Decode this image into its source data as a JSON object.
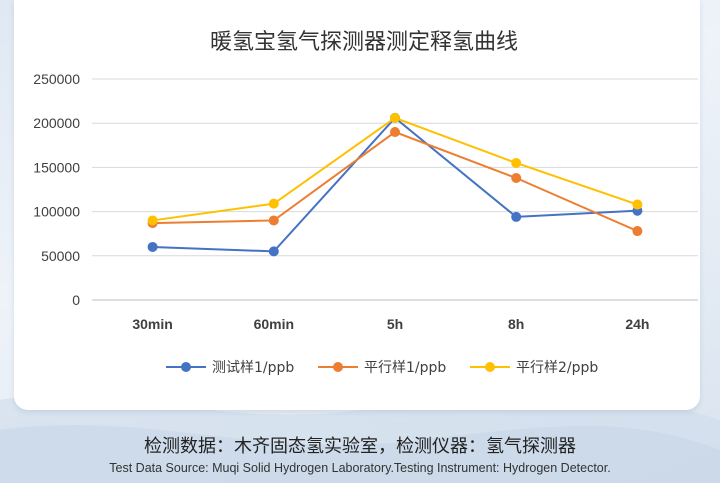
{
  "chart_data": {
    "type": "line",
    "title": "暖氢宝氢气探测器测定释氢曲线",
    "categories": [
      "30min",
      "60min",
      "5h",
      "8h",
      "24h"
    ],
    "ylim": [
      0,
      250000
    ],
    "yticks": [
      0,
      50000,
      100000,
      150000,
      200000,
      250000
    ],
    "grid": true,
    "legend_position": "bottom",
    "series": [
      {
        "name": "测试样1/ppb",
        "color": "#4472C4",
        "values": [
          60000,
          55000,
          206000,
          94000,
          101000
        ]
      },
      {
        "name": "平行样1/ppb",
        "color": "#ED7D31",
        "values": [
          87000,
          90000,
          190000,
          138000,
          78000
        ]
      },
      {
        "name": "平行样2/ppb",
        "color": "#FFC000",
        "values": [
          90000,
          109000,
          206000,
          155000,
          108000
        ]
      }
    ]
  },
  "footer": {
    "cn": "检测数据：木齐固态氢实验室，检测仪器：氢气探测器",
    "en": "Test Data Source: Muqi Solid Hydrogen Laboratory.Testing Instrument: Hydrogen Detector."
  }
}
